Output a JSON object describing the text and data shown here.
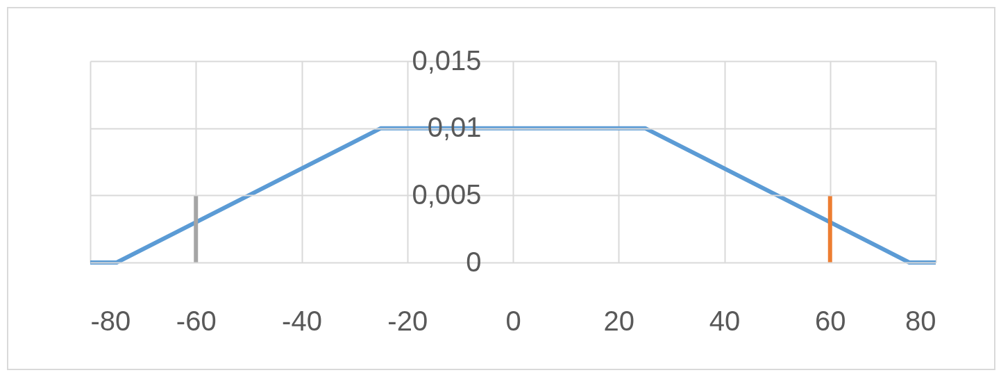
{
  "chart_data": {
    "type": "line",
    "xlim": [
      -80,
      80
    ],
    "xticks": [
      -80,
      -60,
      -40,
      -20,
      0,
      20,
      40,
      60,
      80
    ],
    "ylim": [
      0,
      0.015
    ],
    "yticks": [
      0,
      {
        "value": 0.005,
        "label": "0,005"
      },
      {
        "value": 0.01,
        "label": "0,01"
      },
      {
        "value": 0.015,
        "label": "0,015"
      }
    ],
    "grid": true,
    "series": [
      {
        "color": "#5b9bd5",
        "x": [
          -80,
          -75,
          -25,
          25,
          75,
          80
        ],
        "values": [
          0,
          0,
          0.01,
          0.01,
          0,
          0
        ]
      },
      {
        "color": "#a5a5a5",
        "x": [
          -60,
          -60
        ],
        "values": [
          0,
          0.005
        ]
      },
      {
        "color": "#ed7d31",
        "x": [
          60,
          60
        ],
        "values": [
          0,
          0.005
        ]
      }
    ]
  }
}
